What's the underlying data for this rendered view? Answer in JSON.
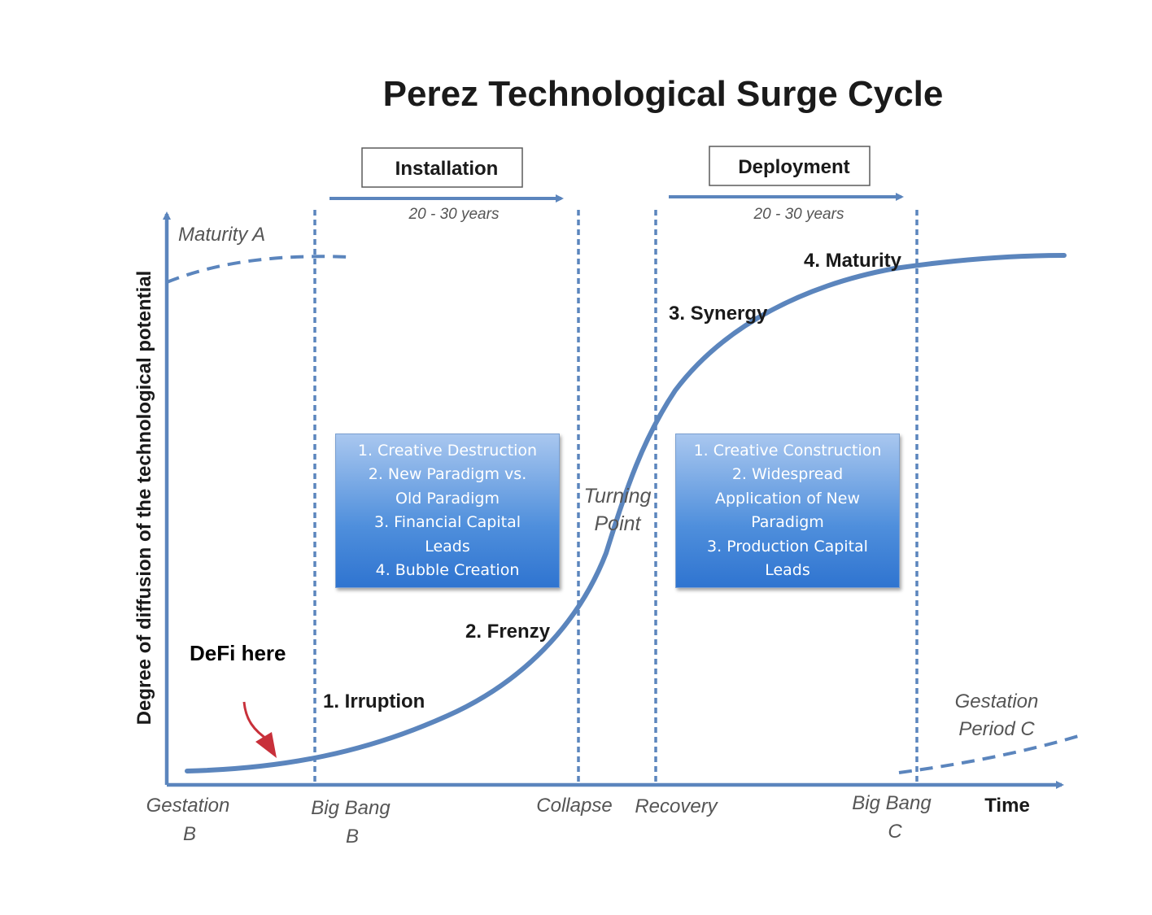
{
  "title": "Perez Technological Surge Cycle",
  "periods": {
    "installation": {
      "label": "Installation",
      "duration": "20 - 30 years"
    },
    "deployment": {
      "label": "Deployment",
      "duration": "20 - 30 years"
    }
  },
  "axes": {
    "y_label": "Degree of diffusion of the technological potential",
    "x_label": "Time"
  },
  "prior_cycle_label": "Maturity A",
  "phases": {
    "irruption": "1. Irruption",
    "frenzy": "2. Frenzy",
    "synergy": "3. Synergy",
    "maturity": "4. Maturity"
  },
  "turning_point": {
    "line1": "Turning",
    "line2": "Point"
  },
  "installation_traits": [
    "1. Creative Destruction",
    "2. New Paradigm vs.",
    "Old Paradigm",
    "3. Financial Capital",
    "Leads",
    "4. Bubble Creation"
  ],
  "deployment_traits": [
    "1. Creative Construction",
    "2. Widespread",
    "Application of New",
    "Paradigm",
    "3. Production Capital",
    "Leads"
  ],
  "markers": {
    "gestation_b": {
      "line1": "Gestation",
      "line2": "B"
    },
    "big_bang_b": {
      "line1": "Big Bang",
      "line2": "B"
    },
    "collapse": "Collapse",
    "recovery": "Recovery",
    "big_bang_c": {
      "line1": "Big Bang",
      "line2": "C"
    },
    "gestation_c": {
      "line1": "Gestation",
      "line2": "Period C"
    }
  },
  "annotation": "DeFi here",
  "colors": {
    "curve": "#5b85bd",
    "arrow_annotation": "#c8303a",
    "box_fill": "#4f8fdc",
    "axis": "#5b85bd"
  }
}
